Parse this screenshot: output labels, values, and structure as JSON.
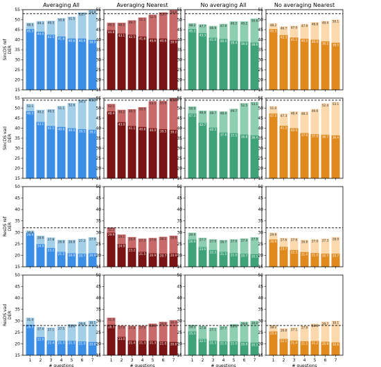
{
  "chart_data": {
    "type": "bar",
    "layout": "4x4 grid of stacked overlay bar panels",
    "columns": [
      "Averaging All",
      "Averaging Nearest",
      "No averaging All",
      "No averaging Nearest"
    ],
    "column_colors": [
      {
        "dark": "#3a8ee6",
        "light": "#a3cfe9"
      },
      {
        "dark": "#7a1414",
        "light": "#c96a6a"
      },
      {
        "dark": "#3fa37a",
        "light": "#8fcfb1"
      },
      {
        "dark": "#e08a1e",
        "light": "#fbd9ad"
      }
    ],
    "xlabel": "# questions",
    "x": [
      "1",
      "2",
      "3",
      "4",
      "5",
      "6",
      "7"
    ],
    "rows": [
      {
        "ylabel_line1": "SincDS ref",
        "ylabel_line2": "DER",
        "ylim": [
          15,
          55
        ],
        "yticks": [
          "15",
          "20",
          "25",
          "30",
          "35",
          "40",
          "45",
          "50",
          "55"
        ],
        "ref_line": 53,
        "panels": [
          {
            "top": [
              48.5,
              49.3,
              49.5,
              50.8,
              51.5,
              53.7,
              54.8
            ],
            "bottom": [
              45.3,
              44.0,
              42.5,
              41.6,
              40.6,
              40.6,
              39.9
            ]
          },
          {
            "top": [
              48.5,
              48.5,
              49.7,
              51.1,
              52.5,
              53.7,
              54.8
            ],
            "bottom": [
              44.8,
              43.1,
              42.5,
              41.6,
              40.6,
              40.6,
              39.9
            ]
          },
          {
            "top": [
              48.2,
              47.7,
              46.9,
              47.9,
              49.2,
              49.2,
              50.6
            ],
            "bottom": [
              45.3,
              43.3,
              41.0,
              40.4,
              39.4,
              39.0,
              38.6
            ]
          },
          {
            "top": [
              48.2,
              46.7,
              47.0,
              47.9,
              48.8,
              49.4,
              50.1
            ],
            "bottom": [
              45.3,
              42.3,
              41.1,
              40.5,
              40.0,
              39.2,
              38.5
            ]
          }
        ]
      },
      {
        "ylabel_line1": "SincDS vad",
        "ylabel_line2": "DER",
        "ylim": [
          15,
          55
        ],
        "yticks": [
          "15",
          "20",
          "25",
          "30",
          "35",
          "40",
          "45",
          "50",
          "55"
        ],
        "ref_line": 54,
        "panels": [
          {
            "top": [
              52.1,
              49.2,
              49.5,
              51.1,
              52.6,
              54.3,
              55.2
            ],
            "bottom": [
              48.5,
              43.1,
              41.1,
              40.6,
              40.0,
              39.5,
              39.2
            ]
          },
          {
            "top": [
              52.1,
              49.2,
              49.5,
              50.5,
              53.5,
              53.6,
              55.8
            ],
            "bottom": [
              48.4,
              43.0,
              41.1,
              40.6,
              40.0,
              39.5,
              39.2
            ]
          },
          {
            "top": [
              50.9,
              48.8,
              48.7,
              48.4,
              49.7,
              52.5,
              53.1
            ],
            "bottom": [
              47.3,
              42.7,
              40.3,
              37.8,
              37.5,
              36.8,
              36.4
            ]
          },
          {
            "top": [
              51.0,
              47.3,
              48.4,
              48.3,
              49.6,
              52.4,
              53.1
            ],
            "bottom": [
              47.3,
              41.2,
              40.0,
              37.6,
              37.0,
              36.7,
              36.4
            ]
          }
        ]
      },
      {
        "ylabel_line1": "ResDS ref",
        "ylabel_line2": "DER",
        "ylim": [
          15,
          50
        ],
        "yticks": [
          "15",
          "20",
          "25",
          "30",
          "35",
          "40",
          "45",
          "50"
        ],
        "ref_line": 32,
        "panels": [
          {
            "top": [
              30.8,
              28.6,
              27.8,
              26.8,
              26.8,
              27.2,
              27.9
            ],
            "bottom": [
              29.9,
              24.9,
              23.2,
              21.5,
              20.9,
              20.7,
              20.9
            ]
          },
          {
            "top": [
              32.2,
              29.1,
              28.0,
              27.3,
              27.6,
              28.1,
              28.6
            ],
            "bottom": [
              29.9,
              24.9,
              23.2,
              21.5,
              20.9,
              20.7,
              20.9
            ]
          },
          {
            "top": [
              29.9,
              27.7,
              27.0,
              26.7,
              27.0,
              27.4,
              27.9
            ],
            "bottom": [
              26.9,
              23.6,
              22.3,
              21.5,
              21.0,
              20.7,
              20.5
            ]
          },
          {
            "top": [
              29.9,
              27.6,
              27.6,
              26.8,
              27.0,
              27.3,
              28.0
            ],
            "bottom": [
              26.9,
              23.7,
              22.3,
              21.4,
              21.0,
              20.7,
              20.7
            ]
          }
        ]
      },
      {
        "ylabel_line1": "ResDS vad",
        "ylabel_line2": "DER",
        "ylim": [
          15,
          50
        ],
        "yticks": [
          "15",
          "20",
          "25",
          "30",
          "35",
          "40",
          "45",
          "50"
        ],
        "ref_line": 28,
        "panels": [
          {
            "top": [
              31.4,
              27.4,
              27.1,
              27.5,
              28.6,
              29.6,
              30.1
            ],
            "bottom": [
              28.3,
              22.9,
              21.4,
              21.3,
              21.3,
              21.0,
              20.8
            ]
          },
          {
            "top": [
              31.4,
              27.9,
              27.8,
              27.9,
              28.8,
              29.6,
              30.3
            ],
            "bottom": [
              28.3,
              23.0,
              21.4,
              21.3,
              21.3,
              21.0,
              20.8
            ]
          },
          {
            "top": [
              28.3,
              27.8,
              27.1,
              27.7,
              28.6,
              29.6,
              30.0
            ],
            "bottom": [
              25.4,
              22.1,
              21.3,
              21.0,
              21.0,
              20.8,
              20.5
            ]
          },
          {
            "top": [
              28.2,
              26.8,
              27.1,
              27.9,
              28.8,
              29.7,
              30.1
            ],
            "bottom": [
              25.4,
              22.1,
              21.4,
              21.1,
              21.2,
              20.9,
              20.6
            ]
          }
        ]
      }
    ]
  }
}
